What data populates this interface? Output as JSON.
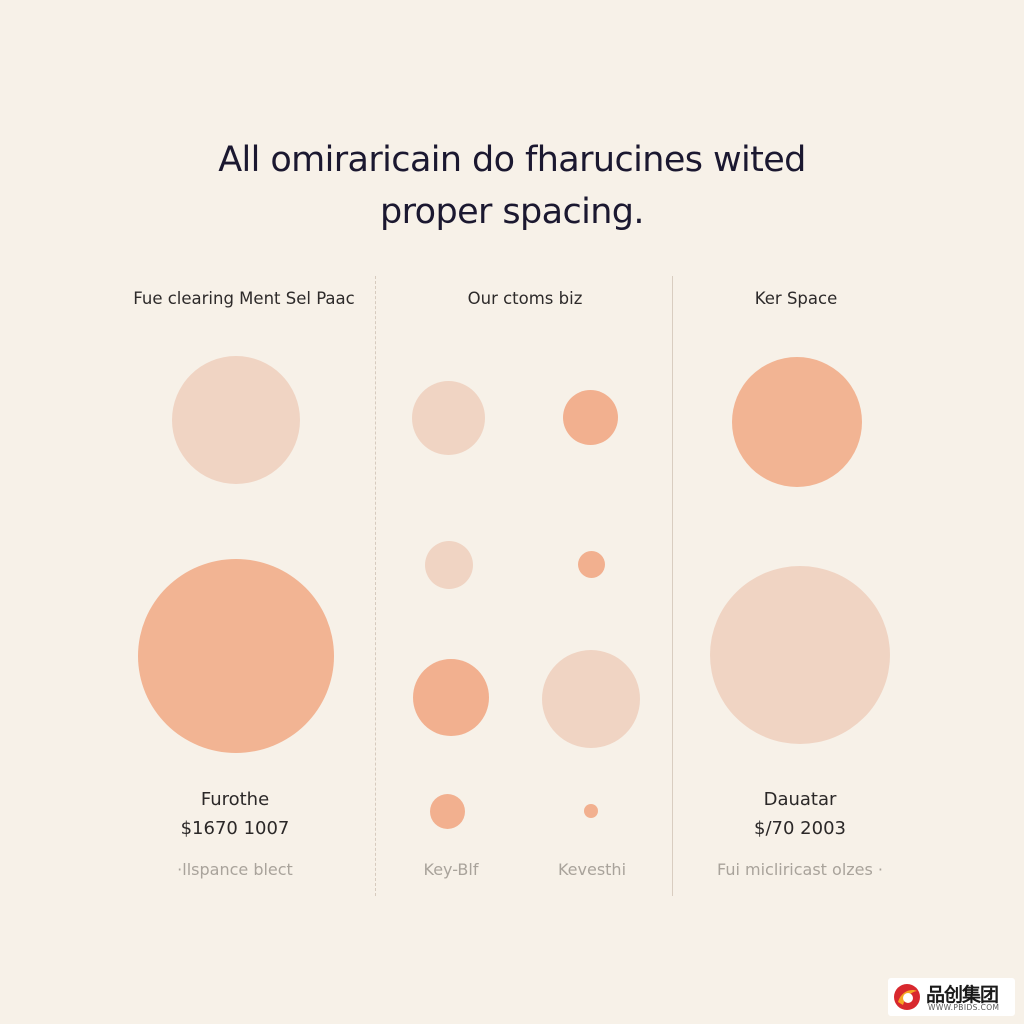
{
  "title": {
    "line1": "All omiraricain do fharucines wited",
    "line2": "proper spacing."
  },
  "columns": {
    "left": {
      "header": "Fue clearing Ment Sel Paac",
      "stat_label": "Furothe",
      "stat_value": "$1670 1007",
      "caption": "·llspance blect"
    },
    "middle": {
      "header": "Our ctoms biz",
      "caption_left": "Key-Blf",
      "caption_right": "Kevesthi"
    },
    "right": {
      "header": "Ker Space",
      "stat_label": "Dauatar",
      "stat_value": "$/70 2003",
      "caption": "Fui micliricast olzes ·"
    }
  },
  "colors": {
    "background": "#F7F1E8",
    "circle_light": "#F0D4C3",
    "circle_salmon": "#F2B08F",
    "divider": "#D7CBBE"
  },
  "logo": {
    "text": "品创集团",
    "url": "WWW.PBIDS.COM"
  }
}
